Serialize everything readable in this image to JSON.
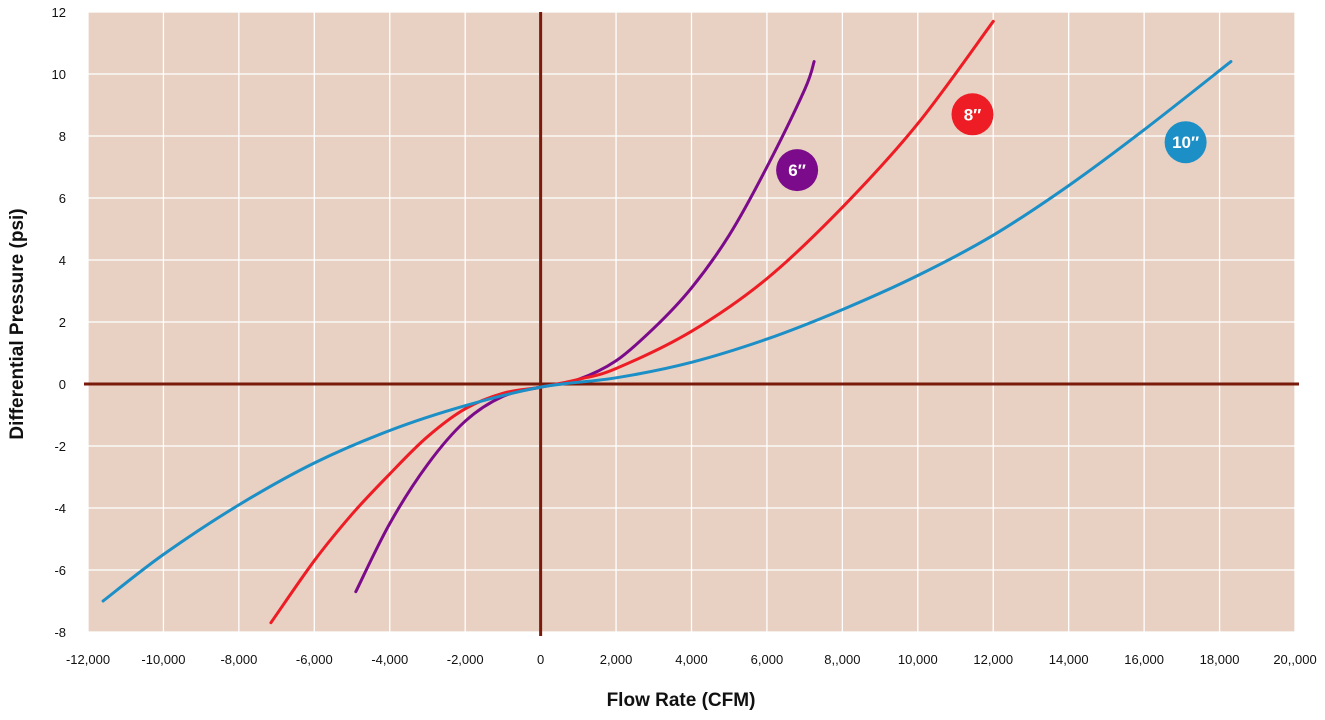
{
  "chart_data": {
    "type": "line",
    "xlabel": "Flow Rate (CFM)",
    "ylabel": "Differential Pressure (psi)",
    "xlim": [
      -12000,
      20000
    ],
    "ylim": [
      -8,
      12
    ],
    "x_ticks": [
      -12000,
      -10000,
      -8000,
      -6000,
      -4000,
      -2000,
      0,
      2000,
      4000,
      6000,
      8000,
      10000,
      12000,
      14000,
      16000,
      18000,
      20000
    ],
    "x_tick_labels": [
      "-12,000",
      "-10,000",
      "-8,000",
      "-6,000",
      "-4,000",
      "-2,000",
      "0",
      "2,000",
      "4,000",
      "6,000",
      "8,,000",
      "10,000",
      "12,000",
      "14,000",
      "16,000",
      "18,000",
      "20,,000"
    ],
    "y_ticks": [
      -8,
      -6,
      -4,
      -2,
      0,
      2,
      4,
      6,
      8,
      10,
      12
    ],
    "y_tick_labels": [
      "-8",
      "-6",
      "-4",
      "-2",
      "0",
      "2",
      "4",
      "6",
      "8",
      "10",
      "12"
    ],
    "grid": true,
    "legend": "inline badges",
    "series": [
      {
        "name": "6″",
        "color": "#7b0b8a",
        "x": [
          -4900,
          -4000,
          -3000,
          -2000,
          -1000,
          0,
          1000,
          2000,
          3000,
          4000,
          5000,
          6000,
          7000,
          7250
        ],
        "y": [
          -6.7,
          -4.5,
          -2.6,
          -1.2,
          -0.4,
          -0.1,
          0.15,
          0.75,
          1.8,
          3.1,
          4.8,
          7.0,
          9.5,
          10.4
        ]
      },
      {
        "name": "8″",
        "color": "#ee1c24",
        "x": [
          -7150,
          -6000,
          -5000,
          -4000,
          -3000,
          -2000,
          -1000,
          0,
          1000,
          2000,
          4000,
          6000,
          8000,
          10000,
          12000
        ],
        "y": [
          -7.7,
          -5.7,
          -4.2,
          -2.9,
          -1.7,
          -0.8,
          -0.3,
          -0.1,
          0.15,
          0.5,
          1.7,
          3.4,
          5.7,
          8.4,
          11.7
        ]
      },
      {
        "name": "10″",
        "color": "#1b8fc6",
        "x": [
          -11600,
          -10000,
          -8000,
          -6000,
          -4000,
          -2000,
          0,
          2000,
          4000,
          6000,
          8000,
          10000,
          12000,
          14000,
          16000,
          18300
        ],
        "y": [
          -7.0,
          -5.5,
          -3.9,
          -2.55,
          -1.5,
          -0.7,
          -0.1,
          0.2,
          0.7,
          1.45,
          2.4,
          3.5,
          4.8,
          6.4,
          8.2,
          10.4
        ]
      }
    ]
  }
}
